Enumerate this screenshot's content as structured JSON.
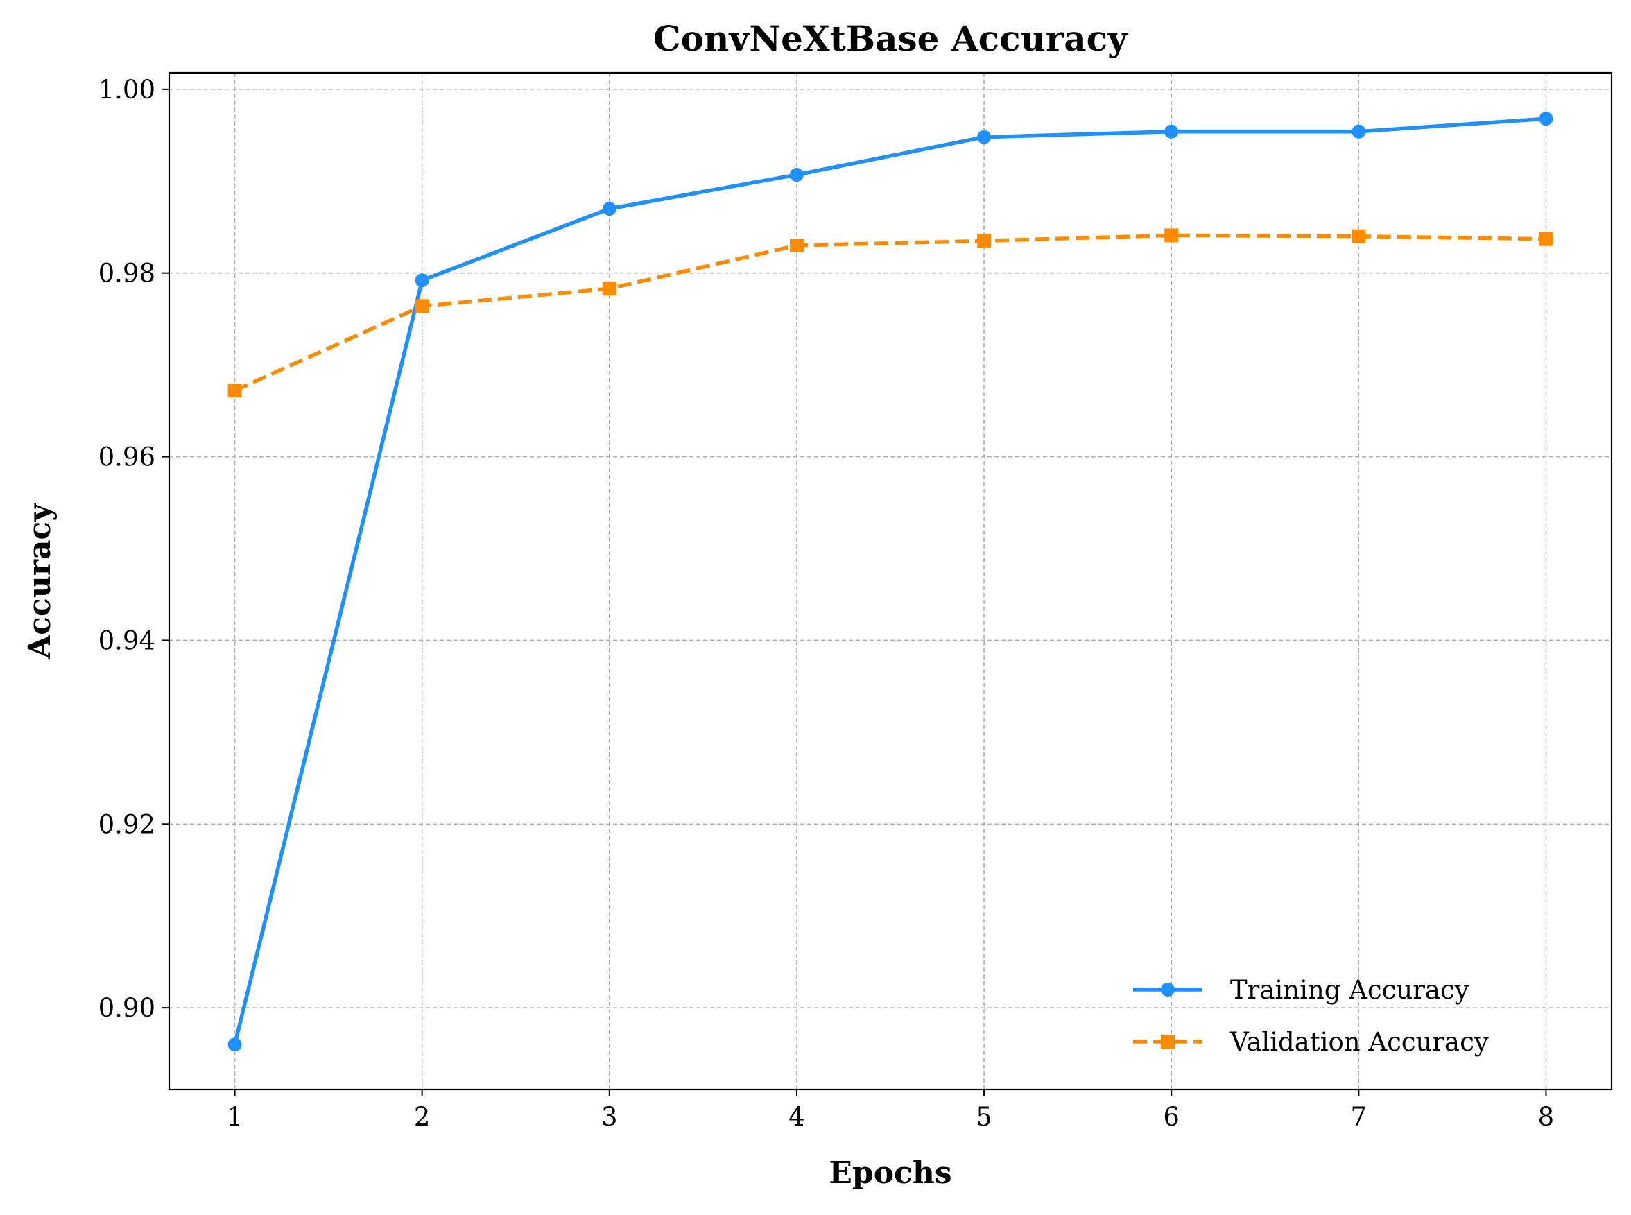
{
  "chart_data": {
    "type": "line",
    "title": "ConvNeXtBase Accuracy",
    "xlabel": "Epochs",
    "ylabel": "Accuracy",
    "x": [
      1,
      2,
      3,
      4,
      5,
      6,
      7,
      8
    ],
    "x_ticks": [
      "1",
      "2",
      "3",
      "4",
      "5",
      "6",
      "7",
      "8"
    ],
    "xlim": [
      0.65,
      8.35
    ],
    "ylim": [
      0.8911,
      1.0018
    ],
    "y_ticks": [
      0.9,
      0.92,
      0.94,
      0.96,
      0.98,
      1.0
    ],
    "y_tick_labels": [
      "0.90",
      "0.92",
      "0.94",
      "0.96",
      "0.98",
      "1.00"
    ],
    "grid": true,
    "legend_position": "lower-right",
    "series": [
      {
        "name": "Training Accuracy",
        "color": "#1E90FF",
        "line_style": "solid",
        "marker": "circle",
        "values": [
          0.896,
          0.9792,
          0.987,
          0.9907,
          0.9948,
          0.9954,
          0.9954,
          0.9968
        ]
      },
      {
        "name": "Validation Accuracy",
        "color": "#FF8C00",
        "line_style": "dashed",
        "marker": "square",
        "values": [
          0.9672,
          0.9764,
          0.9783,
          0.983,
          0.9835,
          0.9841,
          0.984,
          0.9837
        ]
      }
    ]
  }
}
